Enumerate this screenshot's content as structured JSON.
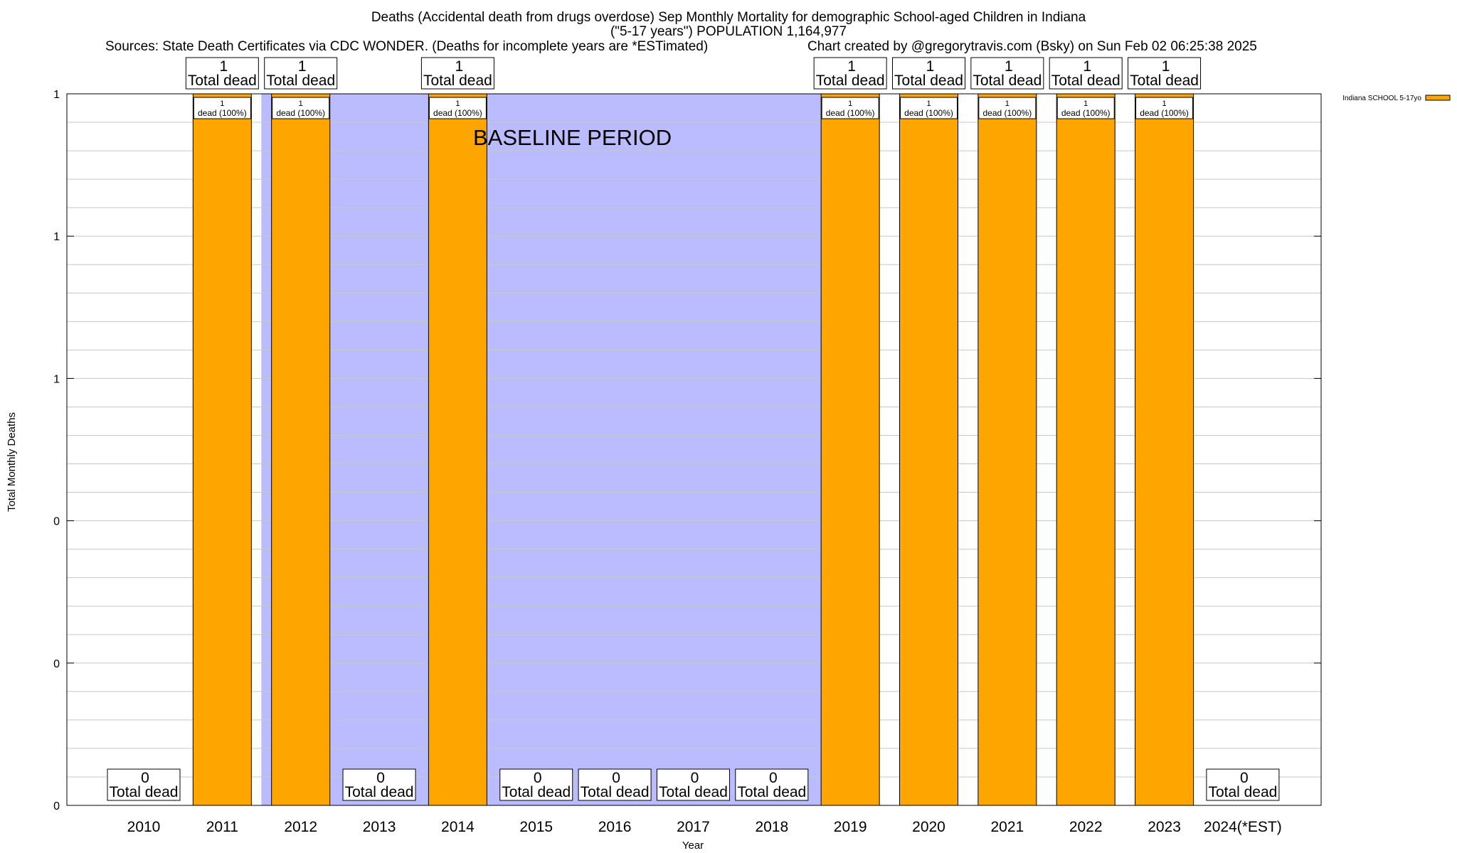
{
  "chart_data": {
    "type": "bar",
    "title_lines": [
      "Deaths (Accidental death from drugs overdose) Sep Monthly Mortality for demographic School-aged Children in Indiana",
      "(\"5-17 years\") POPULATION 1,164,977"
    ],
    "sources": "Sources: State Death Certificates via CDC WONDER. (Deaths for incomplete years are *ESTimated)",
    "credit": "Chart created by @gregorytravis.com (Bsky) on Sun Feb 02 06:25:38 2025",
    "xlabel": "Year",
    "ylabel": "Total Monthly Deaths",
    "categories": [
      "2010",
      "2011",
      "2012",
      "2013",
      "2014",
      "2015",
      "2016",
      "2017",
      "2018",
      "2019",
      "2020",
      "2021",
      "2022",
      "2023",
      "2024(*EST)"
    ],
    "series": [
      {
        "name": "Indiana SCHOOL 5-17yo",
        "color": "#ffa500",
        "values": [
          0,
          1,
          1,
          0,
          1,
          0,
          0,
          0,
          0,
          1,
          1,
          1,
          1,
          1,
          0
        ]
      }
    ],
    "ylim": [
      0,
      1
    ],
    "yticks": [
      {
        "value": 0,
        "label": "0"
      },
      {
        "value": 0.2,
        "label": "0"
      },
      {
        "value": 0.4,
        "label": "0"
      },
      {
        "value": 0.6,
        "label": "1"
      },
      {
        "value": 0.8,
        "label": "1"
      },
      {
        "value": 1.0,
        "label": "1"
      }
    ],
    "total_labels": [
      "0\nTotal dead",
      "1\nTotal dead",
      "1\nTotal dead",
      "0\nTotal dead",
      "1\nTotal dead",
      "0\nTotal dead",
      "0\nTotal dead",
      "0\nTotal dead",
      "0\nTotal dead",
      "1\nTotal dead",
      "1\nTotal dead",
      "1\nTotal dead",
      "1\nTotal dead",
      "1\nTotal dead",
      "0\nTotal dead"
    ],
    "segment_labels": [
      "",
      "1\ndead (100%)",
      "1\ndead (100%)",
      "",
      "1\ndead (100%)",
      "",
      "",
      "",
      "",
      "1\ndead (100%)",
      "1\ndead (100%)",
      "1\ndead (100%)",
      "1\ndead (100%)",
      "1\ndead (100%)",
      ""
    ],
    "baseline_label": "BASELINE PERIOD",
    "baseline_color": "#bbbbff",
    "grid": true,
    "legend_position": "top-right"
  }
}
